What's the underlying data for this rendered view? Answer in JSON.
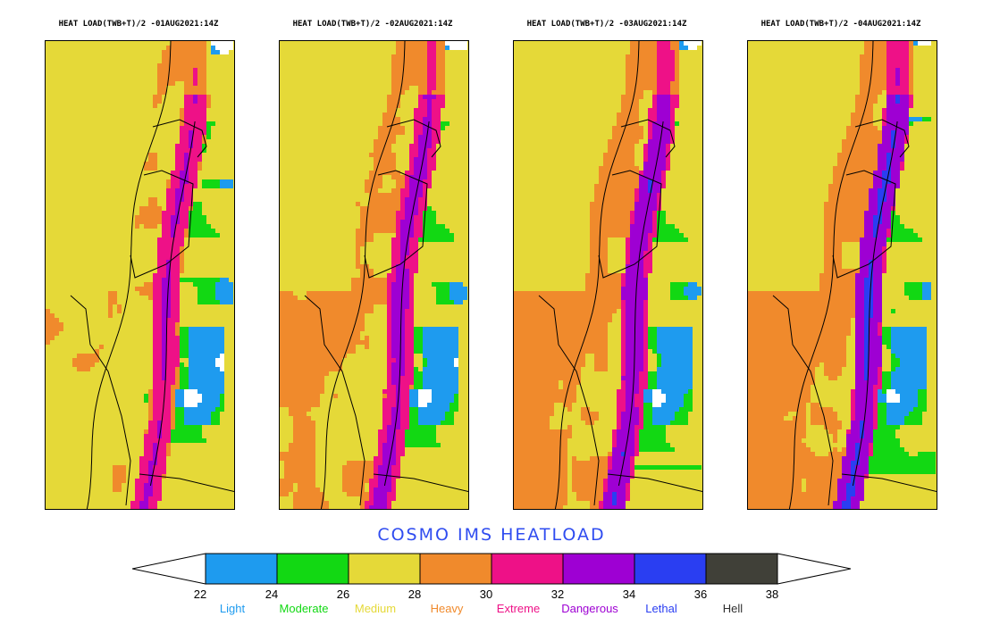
{
  "panels": [
    {
      "title": "HEAT LOAD(TWB+T)/2 -01AUG2021:14Z",
      "heat_factor": 0.0
    },
    {
      "title": "HEAT LOAD(TWB+T)/2 -02AUG2021:14Z",
      "heat_factor": 0.35
    },
    {
      "title": "HEAT LOAD(TWB+T)/2 -03AUG2021:14Z",
      "heat_factor": 0.7
    },
    {
      "title": "HEAT LOAD(TWB+T)/2 -04AUG2021:14Z",
      "heat_factor": 1.0
    }
  ],
  "legend": {
    "title": "COSMO IMS HEATLOAD",
    "ticks": [
      "22",
      "24",
      "26",
      "28",
      "30",
      "32",
      "34",
      "36",
      "38"
    ],
    "categories": [
      {
        "label": "Light",
        "color": "#1e9bef"
      },
      {
        "label": "Moderate",
        "color": "#12d813"
      },
      {
        "label": "Medium",
        "color": "#e5d938"
      },
      {
        "label": "Heavy",
        "color": "#f08a2c"
      },
      {
        "label": "Extreme",
        "color": "#ee1187"
      },
      {
        "label": "Dangerous",
        "color": "#9e00d3"
      },
      {
        "label": "Lethal",
        "color": "#2a3ef2"
      },
      {
        "label": "Hell",
        "color": "#404038"
      }
    ]
  }
}
